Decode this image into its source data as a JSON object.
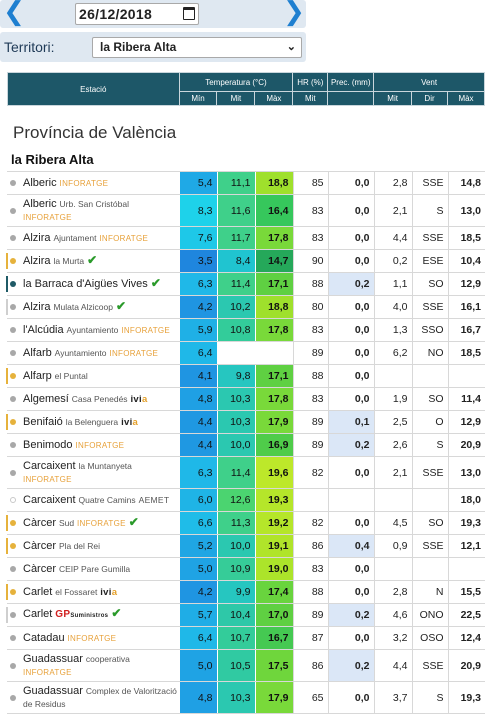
{
  "date_nav": {
    "prev_icon": "chevron-left-icon",
    "next_icon": "chevron-right-icon",
    "date_value": "26/12/2018",
    "calendar_icon": "calendar-icon"
  },
  "filter": {
    "label": "Territori:",
    "selected": "la Ribera Alta"
  },
  "table_header": {
    "estacio": "Estació",
    "temperatura": "Temperatura (°C)",
    "hr": "HR (%)",
    "prec": "Prec. (mm)",
    "vent": "Vent",
    "min": "Mín",
    "mit": "Mit",
    "max": "Màx",
    "hr_mit": "Mit",
    "vent_mit": "Mit",
    "dir": "Dir",
    "vent_max": "Màx"
  },
  "section_title": "Província de València",
  "region_title": "la Ribera Alta",
  "colors": {
    "status_grey": "#a8a8a8",
    "status_yellow": "#e6b23c",
    "status_dark": "#1f5a66",
    "inforatge": "#e7a13a",
    "check_green": "#2a9a2a"
  },
  "rows": [
    {
      "name": "Alberic",
      "sub": "",
      "net": "INFORATGE",
      "status": "#a8a8a8",
      "check": false,
      "tall": false,
      "min": "5,4",
      "mit": "11,1",
      "max": "18,8",
      "hr": "85",
      "prec": "0,0",
      "vmit": "2,8",
      "dir": "SSE",
      "vmax": "14,8",
      "cmin": "#1fa9e6",
      "cmit": "#3fd08a",
      "cmax": "#9fe02c"
    },
    {
      "name": "Alberic",
      "sub": "Urb. San Cristóbal",
      "net": "INFORATGE",
      "status": "#a8a8a8",
      "check": false,
      "tall": true,
      "min": "8,3",
      "mit": "11,6",
      "max": "16,4",
      "hr": "83",
      "prec": "0,0",
      "vmit": "2,1",
      "dir": "S",
      "vmax": "13,0",
      "cmin": "#1ed2ea",
      "cmit": "#3fd08a",
      "cmax": "#36c75c"
    },
    {
      "name": "Alzira",
      "sub": "Ajuntament",
      "net": "INFORATGE",
      "status": "#a8a8a8",
      "check": false,
      "tall": false,
      "min": "7,6",
      "mit": "11,7",
      "max": "17,8",
      "hr": "83",
      "prec": "0,0",
      "vmit": "4,4",
      "dir": "SSE",
      "vmax": "18,5",
      "cmin": "#1ec8e8",
      "cmit": "#3fd08a",
      "cmax": "#79d93a"
    },
    {
      "name": "Alzira",
      "sub": "la Murta",
      "net": "",
      "status": "#e6b23c",
      "check": true,
      "tall": false,
      "min": "3,5",
      "mit": "8,4",
      "max": "14,7",
      "hr": "90",
      "prec": "0,0",
      "vmit": "0,2",
      "dir": "ESE",
      "vmax": "10,4",
      "cmin": "#1f86de",
      "cmit": "#20c4d0",
      "cmax": "#25a85a"
    },
    {
      "name": "la Barraca d'Aigües Vives",
      "sub": "",
      "net": "",
      "status": "#1f5a66",
      "check": true,
      "tall": false,
      "min": "6,3",
      "mit": "11,4",
      "max": "17,1",
      "hr": "88",
      "prec": "0,2",
      "vmit": "1,1",
      "dir": "SO",
      "vmax": "12,9",
      "cmin": "#1fb8e8",
      "cmit": "#3fd08a",
      "cmax": "#5fd042",
      "hlprec": true
    },
    {
      "name": "Alzira",
      "sub": "Mulata Alzicoop",
      "net": "",
      "status": "#a8a8a8",
      "check": true,
      "tall": false,
      "min": "4,2",
      "mit": "10,2",
      "max": "18,8",
      "hr": "80",
      "prec": "0,0",
      "vmit": "4,0",
      "dir": "SSE",
      "vmax": "16,1",
      "cmin": "#1f95e2",
      "cmit": "#2bc8b0",
      "cmax": "#9fe02c"
    },
    {
      "name": "l'Alcúdia",
      "sub": "Ayuntamiento",
      "net": "INFORATGE",
      "status": "#a8a8a8",
      "check": false,
      "tall": false,
      "min": "5,9",
      "mit": "10,8",
      "max": "17,8",
      "hr": "83",
      "prec": "0,0",
      "vmit": "1,3",
      "dir": "SSO",
      "vmax": "16,7",
      "cmin": "#1fb0e6",
      "cmit": "#33cc9a",
      "cmax": "#79d93a"
    },
    {
      "name": "Alfarb",
      "sub": "Ayuntamiento",
      "net": "INFORATGE",
      "status": "#a8a8a8",
      "check": false,
      "tall": false,
      "min": "6,4",
      "mit": "",
      "max": "",
      "hr": "89",
      "prec": "0,0",
      "vmit": "6,2",
      "dir": "NO",
      "vmax": "18,5",
      "cmin": "#1fb8e8",
      "cmit": "#ffffff",
      "cmax": "#ffffff"
    },
    {
      "name": "Alfarp",
      "sub": "el Puntal",
      "net": "",
      "status": "#e6b23c",
      "check": false,
      "tall": false,
      "min": "4,1",
      "mit": "9,8",
      "max": "17,1",
      "hr": "88",
      "prec": "0,0",
      "vmit": "",
      "dir": "",
      "vmax": "",
      "cmin": "#1f95e2",
      "cmit": "#26c6c0",
      "cmax": "#5fd042"
    },
    {
      "name": "Algemesí",
      "sub": "Casa Penedés",
      "net": "ivia",
      "status": "#a8a8a8",
      "check": false,
      "tall": false,
      "min": "4,8",
      "mit": "10,3",
      "max": "17,8",
      "hr": "83",
      "prec": "0,0",
      "vmit": "1,9",
      "dir": "SO",
      "vmax": "11,4",
      "cmin": "#1fa0e4",
      "cmit": "#2bc8b0",
      "cmax": "#79d93a"
    },
    {
      "name": "Benifaió",
      "sub": "la Belenguera",
      "net": "ivia",
      "status": "#e6b23c",
      "check": false,
      "tall": false,
      "min": "4,4",
      "mit": "10,3",
      "max": "17,9",
      "hr": "89",
      "prec": "0,1",
      "vmit": "2,5",
      "dir": "O",
      "vmax": "12,9",
      "cmin": "#1f98e2",
      "cmit": "#2bc8b0",
      "cmax": "#79d93a",
      "hlprec": true
    },
    {
      "name": "Benimodo",
      "sub": "",
      "net": "INFORATGE",
      "status": "#a8a8a8",
      "check": false,
      "tall": false,
      "min": "4,4",
      "mit": "10,0",
      "max": "16,9",
      "hr": "89",
      "prec": "0,2",
      "vmit": "2,6",
      "dir": "S",
      "vmax": "20,9",
      "cmin": "#1f98e2",
      "cmit": "#2bc8b0",
      "cmax": "#4fcc4a",
      "hlprec": true
    },
    {
      "name": "Carcaixent",
      "sub": "la Muntanyeta",
      "net": "INFORATGE",
      "status": "#a8a8a8",
      "check": false,
      "tall": true,
      "min": "6,3",
      "mit": "11,4",
      "max": "19,6",
      "hr": "82",
      "prec": "0,0",
      "vmit": "2,1",
      "dir": "SSE",
      "vmax": "13,0",
      "cmin": "#1fb8e8",
      "cmit": "#3fd08a",
      "cmax": "#bde82a"
    },
    {
      "name": "Carcaixent",
      "sub": "Quatre Camins",
      "net": "AEMET",
      "status": "#d8d8d8",
      "check": false,
      "tall": false,
      "min": "6,0",
      "mit": "12,6",
      "max": "19,3",
      "hr": "",
      "prec": "",
      "vmit": "",
      "dir": "",
      "vmax": "18,0",
      "cmin": "#1fb4e6",
      "cmit": "#4bd470",
      "cmax": "#b5e62a"
    },
    {
      "name": "Càrcer",
      "sub": "Sud",
      "net": "INFORATGE",
      "status": "#e6b23c",
      "check": true,
      "tall": false,
      "min": "6,6",
      "mit": "11,3",
      "max": "19,2",
      "hr": "82",
      "prec": "0,0",
      "vmit": "4,5",
      "dir": "SO",
      "vmax": "19,3",
      "cmin": "#1fbce8",
      "cmit": "#3fd08a",
      "cmax": "#b5e62a"
    },
    {
      "name": "Càrcer",
      "sub": "Pla del Rei",
      "net": "",
      "status": "#e6b23c",
      "check": false,
      "tall": false,
      "min": "5,2",
      "mit": "10,0",
      "max": "19,1",
      "hr": "86",
      "prec": "0,4",
      "vmit": "0,9",
      "dir": "SSE",
      "vmax": "12,1",
      "cmin": "#1fa6e4",
      "cmit": "#2bc8b0",
      "cmax": "#b0e42a",
      "hlprec": true
    },
    {
      "name": "Càrcer",
      "sub": "CEIP Pare Gumilla",
      "net": "",
      "status": "#a8a8a8",
      "check": false,
      "tall": false,
      "min": "5,0",
      "mit": "10,9",
      "max": "19,0",
      "hr": "83",
      "prec": "0,0",
      "vmit": "",
      "dir": "",
      "vmax": "",
      "cmin": "#1fa3e4",
      "cmit": "#36cc98",
      "cmax": "#acE42a"
    },
    {
      "name": "Carlet",
      "sub": "el Fossaret",
      "net": "ivia",
      "status": "#e6b23c",
      "check": false,
      "tall": false,
      "min": "4,2",
      "mit": "9,9",
      "max": "17,4",
      "hr": "88",
      "prec": "0,0",
      "vmit": "2,8",
      "dir": "N",
      "vmax": "15,5",
      "cmin": "#1f95e2",
      "cmit": "#26c6c0",
      "cmax": "#69d43e"
    },
    {
      "name": "Carlet",
      "sub": "",
      "net": "GP",
      "status": "#a8a8a8",
      "check": true,
      "tall": false,
      "min": "5,7",
      "mit": "10,4",
      "max": "17,0",
      "hr": "89",
      "prec": "0,2",
      "vmit": "4,6",
      "dir": "ONO",
      "vmax": "22,5",
      "cmin": "#1fadE6",
      "cmit": "#2ec8a8",
      "cmax": "#5fd042",
      "hlprec": true
    },
    {
      "name": "Catadau",
      "sub": "",
      "net": "INFORATGE",
      "status": "#a8a8a8",
      "check": false,
      "tall": false,
      "min": "6,4",
      "mit": "10,7",
      "max": "16,7",
      "hr": "87",
      "prec": "0,0",
      "vmit": "3,2",
      "dir": "OSO",
      "vmax": "12,4",
      "cmin": "#1fb8e8",
      "cmit": "#33cc9a",
      "cmax": "#45c952"
    },
    {
      "name": "Guadassuar",
      "sub": "cooperativa",
      "net": "INFORATGE",
      "status": "#a8a8a8",
      "check": false,
      "tall": true,
      "min": "5,0",
      "mit": "10,5",
      "max": "17,5",
      "hr": "86",
      "prec": "0,2",
      "vmit": "4,4",
      "dir": "SSE",
      "vmax": "20,9",
      "cmin": "#1fa3e4",
      "cmit": "#30caa2",
      "cmax": "#6fd63c",
      "hlprec": true
    },
    {
      "name": "Guadassuar",
      "sub": "Complex de Valorització de Residus",
      "net": "",
      "status": "#a8a8a8",
      "check": false,
      "tall": true,
      "min": "4,8",
      "mit": "10,3",
      "max": "17,9",
      "hr": "65",
      "prec": "0,0",
      "vmit": "3,7",
      "dir": "S",
      "vmax": "19,3",
      "cmin": "#1fa0e4",
      "cmit": "#2bc8b0",
      "cmax": "#79d93a"
    }
  ]
}
